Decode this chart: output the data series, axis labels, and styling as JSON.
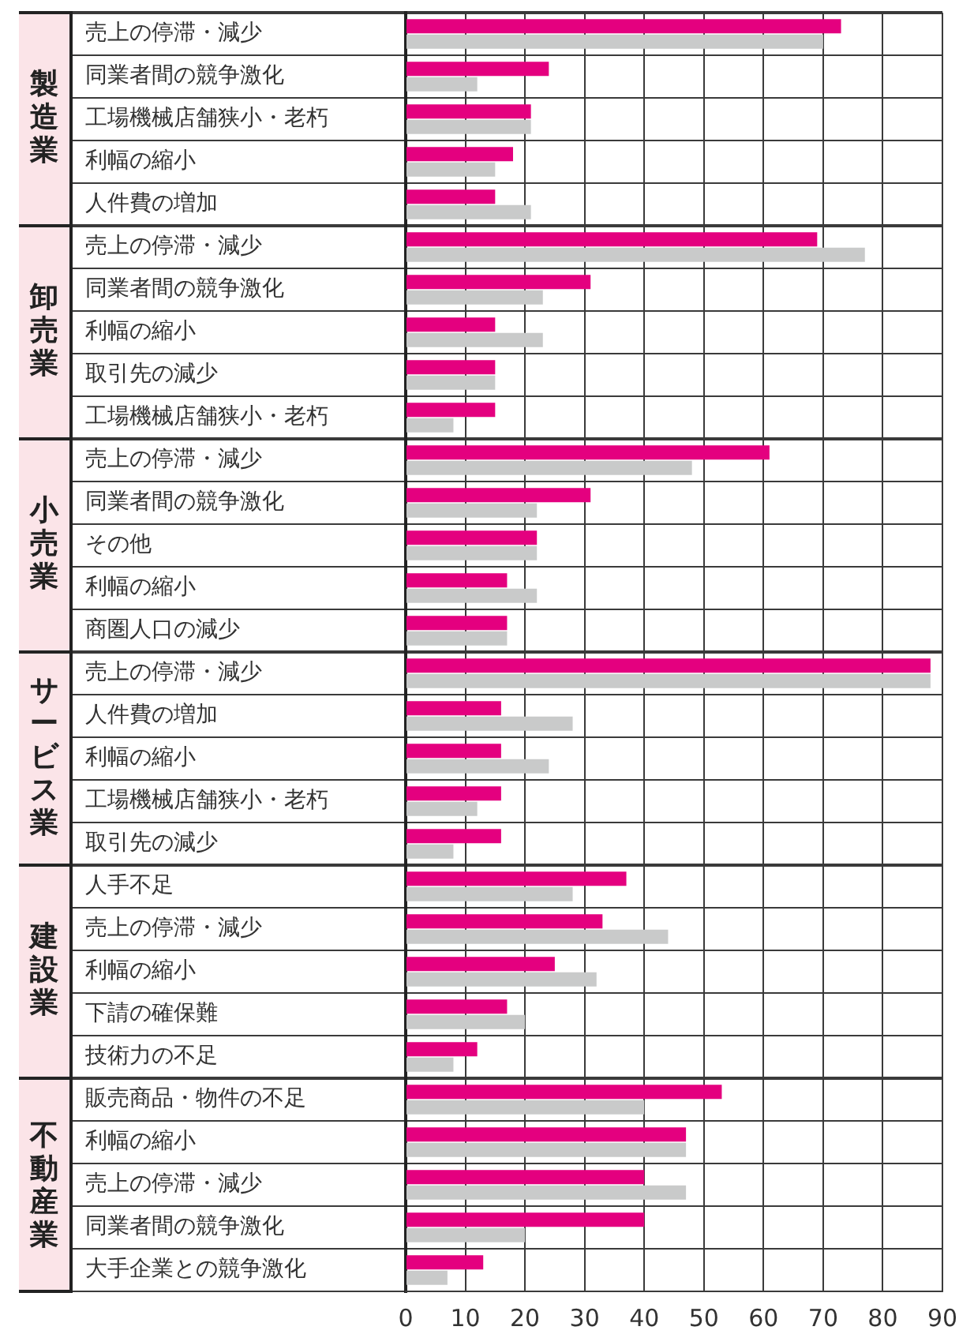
{
  "chart_data": [
    {
      "type": "bar",
      "orientation": "horizontal",
      "title": "製造業",
      "categories": [
        "売上の停滞・減少",
        "同業者間の競争激化",
        "工場機械店舗狭小・老朽",
        "利幅の縮小",
        "人件費の増加"
      ],
      "series": [
        {
          "color": "#e4007f",
          "values": [
            73,
            24,
            21,
            18,
            15
          ]
        },
        {
          "color": "#c9caca",
          "values": [
            70,
            12,
            21,
            15,
            21
          ]
        }
      ],
      "xlim": [
        0,
        90
      ],
      "xticks": [
        0,
        10,
        20,
        30,
        40,
        50,
        60,
        70,
        80,
        90
      ],
      "grid": true,
      "tick_labels": "y"
    },
    {
      "type": "bar",
      "orientation": "horizontal",
      "title": "卸売業",
      "categories": [
        "売上の停滞・減少",
        "同業者間の競争激化",
        "利幅の縮小",
        "取引先の減少",
        "工場機械店舗狭小・老朽"
      ],
      "series": [
        {
          "color": "#e4007f",
          "values": [
            69,
            31,
            15,
            15,
            15
          ]
        },
        {
          "color": "#c9caca",
          "values": [
            77,
            23,
            23,
            15,
            8
          ]
        }
      ],
      "xlim": [
        0,
        90
      ],
      "xticks": [
        0,
        10,
        20,
        30,
        40,
        50,
        60,
        70,
        80,
        90
      ],
      "grid": true,
      "tick_labels": "y"
    },
    {
      "type": "bar",
      "orientation": "horizontal",
      "title": "小売業",
      "categories": [
        "売上の停滞・減少",
        "同業者間の競争激化",
        "その他",
        "利幅の縮小",
        "商圏人口の減少"
      ],
      "series": [
        {
          "color": "#e4007f",
          "values": [
            61,
            31,
            22,
            17,
            17
          ]
        },
        {
          "color": "#c9caca",
          "values": [
            48,
            22,
            22,
            22,
            17
          ]
        }
      ],
      "xlim": [
        0,
        90
      ],
      "xticks": [
        0,
        10,
        20,
        30,
        40,
        50,
        60,
        70,
        80,
        90
      ],
      "grid": true,
      "tick_labels": "y"
    },
    {
      "type": "bar",
      "orientation": "horizontal",
      "title": "サービス業",
      "categories": [
        "売上の停滞・減少",
        "人件費の増加",
        "利幅の縮小",
        "工場機械店舗狭小・老朽",
        "取引先の減少"
      ],
      "series": [
        {
          "color": "#e4007f",
          "values": [
            88,
            16,
            16,
            16,
            16
          ]
        },
        {
          "color": "#c9caca",
          "values": [
            88,
            28,
            24,
            12,
            8
          ]
        }
      ],
      "xlim": [
        0,
        90
      ],
      "xticks": [
        0,
        10,
        20,
        30,
        40,
        50,
        60,
        70,
        80,
        90
      ],
      "grid": true,
      "tick_labels": "y"
    },
    {
      "type": "bar",
      "orientation": "horizontal",
      "title": "建設業",
      "categories": [
        "人手不足",
        "売上の停滞・減少",
        "利幅の縮小",
        "下請の確保難",
        "技術力の不足"
      ],
      "series": [
        {
          "color": "#e4007f",
          "values": [
            37,
            33,
            25,
            17,
            12
          ]
        },
        {
          "color": "#c9caca",
          "values": [
            28,
            44,
            32,
            20,
            8
          ]
        }
      ],
      "xlim": [
        0,
        90
      ],
      "xticks": [
        0,
        10,
        20,
        30,
        40,
        50,
        60,
        70,
        80,
        90
      ],
      "grid": true,
      "tick_labels": "y"
    },
    {
      "type": "bar",
      "orientation": "horizontal",
      "title": "不動産業",
      "categories": [
        "販売商品・物件の不足",
        "利幅の縮小",
        "売上の停滞・減少",
        "同業者間の競争激化",
        "大手企業との競争激化"
      ],
      "series": [
        {
          "color": "#e4007f",
          "values": [
            53,
            47,
            40,
            40,
            13
          ]
        },
        {
          "color": "#c9caca",
          "values": [
            40,
            47,
            47,
            20,
            7
          ]
        }
      ],
      "xlim": [
        0,
        90
      ],
      "xticks": [
        0,
        10,
        20,
        30,
        40,
        50,
        60,
        70,
        80,
        90
      ],
      "grid": true
    }
  ]
}
